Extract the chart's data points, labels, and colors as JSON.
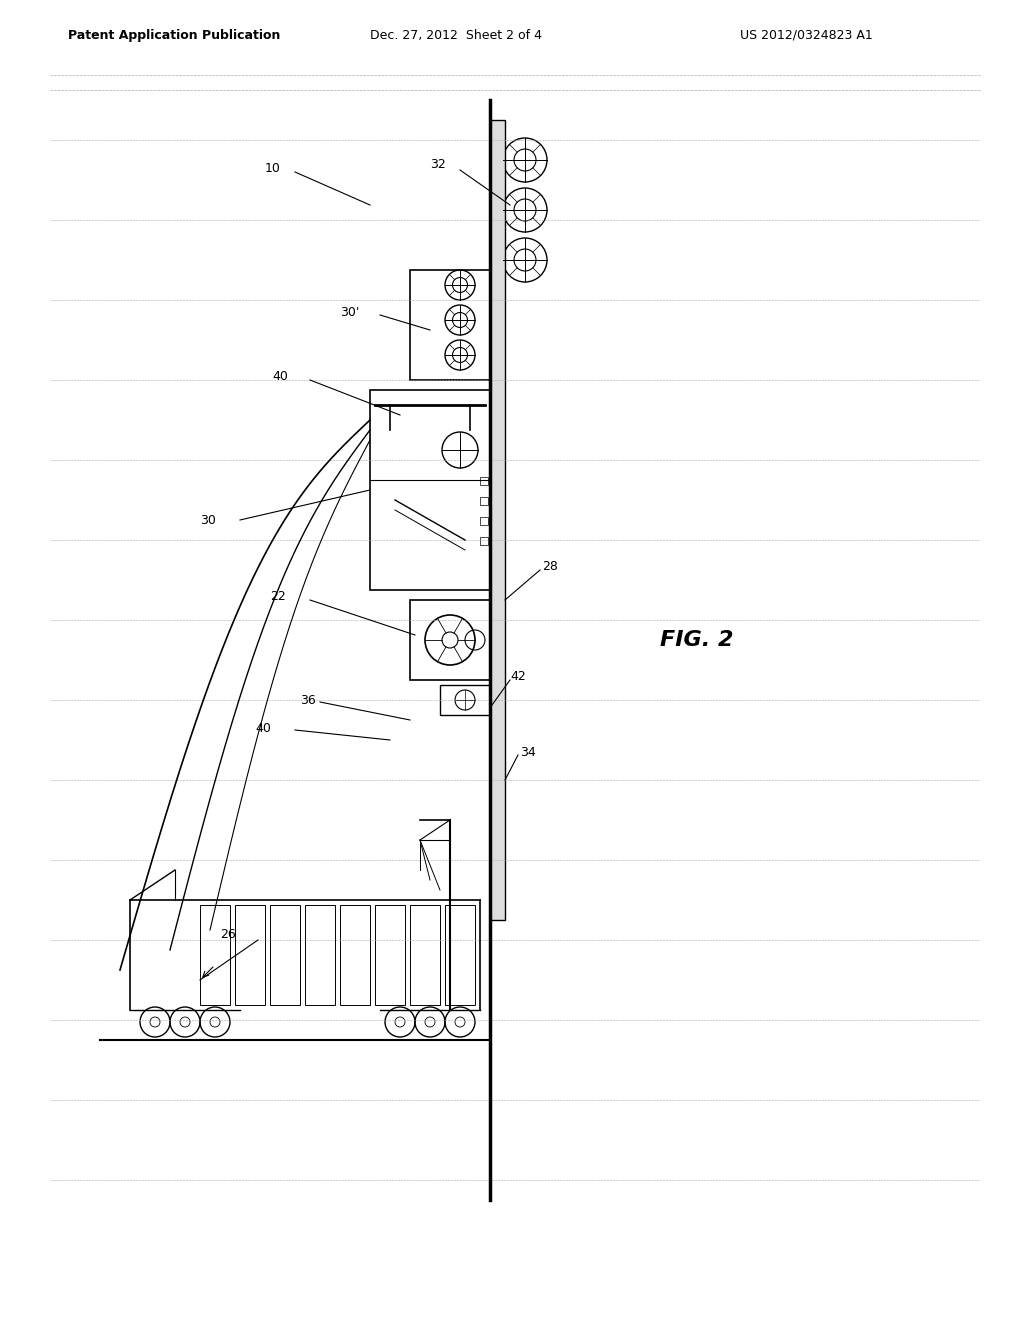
{
  "bg_color": "#ffffff",
  "header_left": "Patent Application Publication",
  "header_center": "Dec. 27, 2012  Sheet 2 of 4",
  "header_right": "US 2012/0324823 A1",
  "figure_label": "FIG. 2",
  "label_10": "10",
  "label_22": "22",
  "label_26": "26",
  "label_28": "28",
  "label_30": "30",
  "label_30p": "30'",
  "label_32": "32",
  "label_34": "34",
  "label_36": "36",
  "label_40": "40",
  "label_40b": "40",
  "label_42": "42",
  "line_color": "#000000",
  "dashed_color": "#aaaaaa",
  "fig_width": 10.24,
  "fig_height": 13.2
}
